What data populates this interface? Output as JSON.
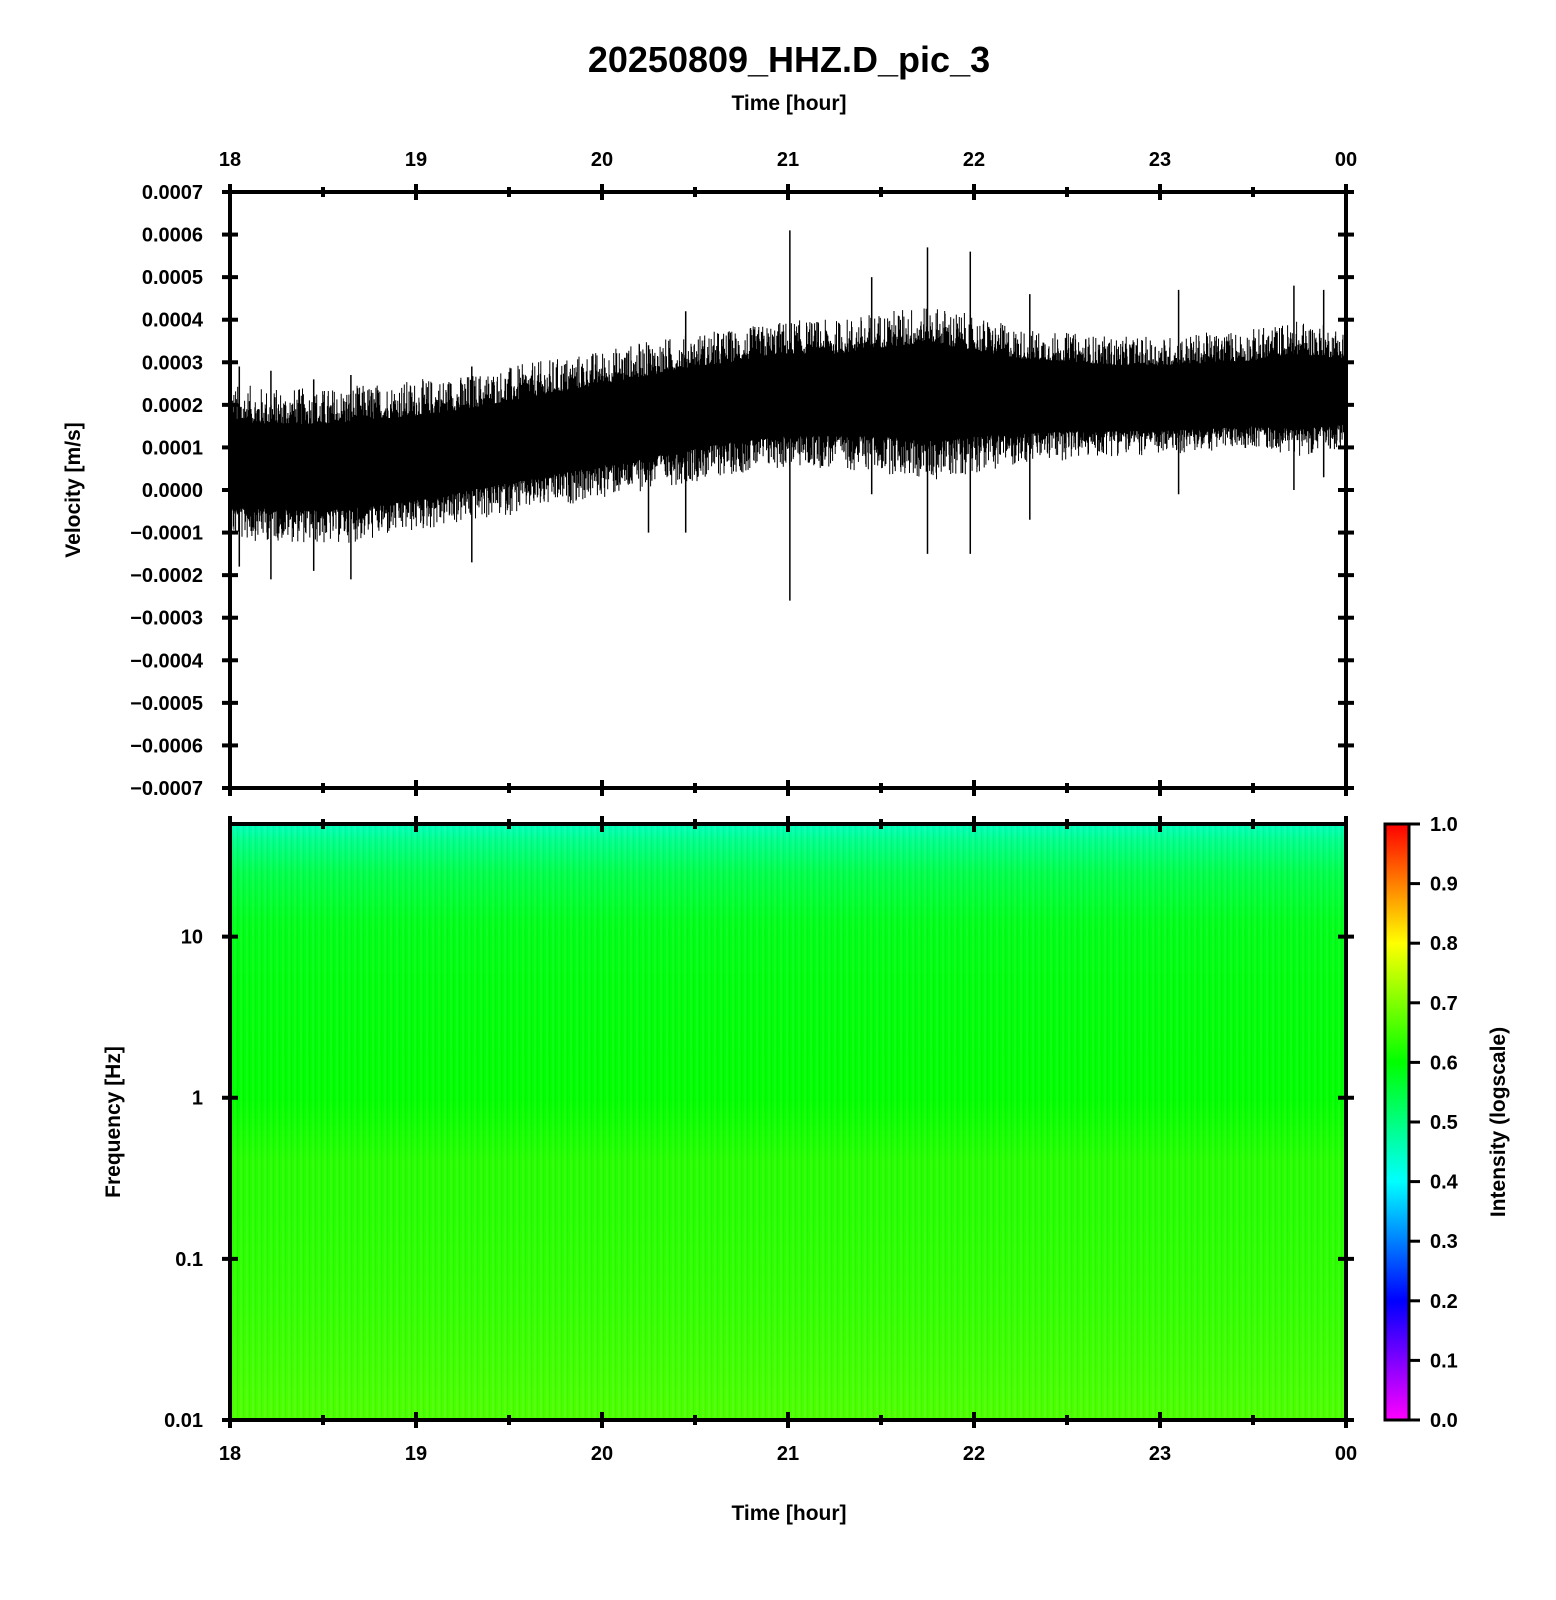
{
  "title": "20250809_HHZ.D_pic_3",
  "colors": {
    "trace": "#000000",
    "axes": "#000000",
    "colormap": [
      "#ff00ff",
      "#0000ff",
      "#00ffff",
      "#00ff00",
      "#ffff00",
      "#ff0000"
    ]
  },
  "chart_data": [
    {
      "type": "line",
      "panel": "waveform",
      "top_axis_label": "Time [hour]",
      "ylabel": "Velocity [m/s]",
      "x_ticks": [
        "18",
        "19",
        "20",
        "21",
        "22",
        "23",
        "00"
      ],
      "xlim": [
        18,
        24
      ],
      "ylim": [
        -0.0007,
        0.0007
      ],
      "y_ticks": [
        "0.0007",
        "0.0006",
        "0.0005",
        "0.0004",
        "0.0003",
        "0.0002",
        "0.0001",
        "0.0000",
        "−0.0001",
        "−0.0002",
        "−0.0003",
        "−0.0004",
        "−0.0005",
        "−0.0006",
        "−0.0007"
      ],
      "series": [
        {
          "envelope": {
            "x": [
              18.0,
              18.25,
              18.5,
              18.75,
              19.0,
              19.25,
              19.5,
              19.75,
              20.0,
              20.25,
              20.5,
              20.75,
              21.0,
              21.25,
              21.5,
              21.75,
              22.0,
              22.25,
              22.5,
              22.75,
              23.0,
              23.25,
              23.5,
              23.75,
              24.0
            ],
            "center": [
              5e-05,
              5e-05,
              5e-05,
              6e-05,
              7e-05,
              9e-05,
              0.00011,
              0.00013,
              0.00015,
              0.00017,
              0.00019,
              0.00021,
              0.00022,
              0.00022,
              0.00023,
              0.00023,
              0.00023,
              0.00022,
              0.00022,
              0.00021,
              0.00021,
              0.00021,
              0.00021,
              0.00022,
              0.00022
            ],
            "upper": [
              0.00025,
              0.00024,
              0.00024,
              0.00025,
              0.00026,
              0.00027,
              0.00029,
              0.00031,
              0.00033,
              0.00035,
              0.00037,
              0.00038,
              0.0004,
              0.0004,
              0.00042,
              0.00044,
              0.00041,
              0.00038,
              0.00037,
              0.00036,
              0.00036,
              0.00037,
              0.00038,
              0.0004,
              0.00038
            ],
            "lower": [
              -0.00012,
              -0.00012,
              -0.00013,
              -0.00012,
              -0.0001,
              -8e-05,
              -6e-05,
              -4e-05,
              -2e-05,
              0.0,
              2e-05,
              4e-05,
              5e-05,
              5e-05,
              4e-05,
              2e-05,
              4e-05,
              6e-05,
              7e-05,
              8e-05,
              8e-05,
              9e-05,
              0.0001,
              8e-05,
              0.0001
            ]
          },
          "spikes": [
            {
              "x": 18.05,
              "y": [
                -0.00018,
                0.00029
              ]
            },
            {
              "x": 18.22,
              "y": [
                -0.00021,
                0.00028
              ]
            },
            {
              "x": 18.45,
              "y": [
                -0.00019,
                0.00026
              ]
            },
            {
              "x": 18.65,
              "y": [
                -0.00021,
                0.00027
              ]
            },
            {
              "x": 19.3,
              "y": [
                -0.00017,
                0.00029
              ]
            },
            {
              "x": 20.25,
              "y": [
                -0.0001,
                0.00034
              ]
            },
            {
              "x": 20.45,
              "y": [
                -0.0001,
                0.00042
              ]
            },
            {
              "x": 21.01,
              "y": [
                -0.00026,
                0.00061
              ]
            },
            {
              "x": 21.45,
              "y": [
                -1e-05,
                0.0005
              ]
            },
            {
              "x": 21.75,
              "y": [
                -0.00015,
                0.00057
              ]
            },
            {
              "x": 21.98,
              "y": [
                -0.00015,
                0.00056
              ]
            },
            {
              "x": 22.3,
              "y": [
                -7e-05,
                0.00046
              ]
            },
            {
              "x": 23.1,
              "y": [
                -1e-05,
                0.00047
              ]
            },
            {
              "x": 23.72,
              "y": [
                0.0,
                0.00048
              ]
            },
            {
              "x": 23.88,
              "y": [
                3e-05,
                0.00047
              ]
            }
          ]
        }
      ]
    },
    {
      "type": "heatmap",
      "panel": "spectrogram",
      "xlabel": "Time [hour]",
      "ylabel": "Frequency [Hz]",
      "x_ticks": [
        "18",
        "19",
        "20",
        "21",
        "22",
        "23",
        "00"
      ],
      "xlim": [
        18,
        24
      ],
      "yscale": "log",
      "ylim": [
        0.01,
        50
      ],
      "y_ticks": [
        "10",
        "1",
        "0.1",
        "0.01"
      ],
      "y_tick_values": [
        10,
        1,
        0.1,
        0.01
      ],
      "intensity_profile": {
        "frequency": [
          50,
          40,
          25,
          12,
          5,
          1,
          0.4,
          0.2,
          0.05,
          0.01
        ],
        "intensity": [
          0.45,
          0.49,
          0.54,
          0.58,
          0.59,
          0.6,
          0.63,
          0.63,
          0.64,
          0.66
        ]
      },
      "colorbar": {
        "label": "Intensity (logscale)",
        "range": [
          0.0,
          1.0
        ],
        "ticks": [
          "1.0",
          "0.9",
          "0.8",
          "0.7",
          "0.6",
          "0.5",
          "0.4",
          "0.3",
          "0.2",
          "0.1",
          "0.0"
        ],
        "tick_values": [
          1.0,
          0.9,
          0.8,
          0.7,
          0.6,
          0.5,
          0.4,
          0.3,
          0.2,
          0.1,
          0.0
        ]
      }
    }
  ]
}
